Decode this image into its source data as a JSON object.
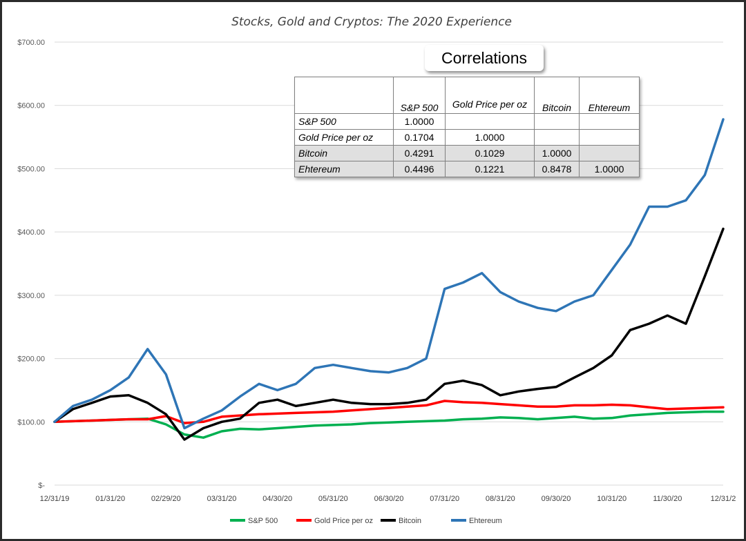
{
  "chart_data": {
    "type": "line",
    "title": "Stocks, Gold and Cryptos: The 2020 Experience",
    "xlabel": "",
    "ylabel": "",
    "x_tick_labels": [
      "12/31/19",
      "01/31/20",
      "02/29/20",
      "03/31/20",
      "04/30/20",
      "05/31/20",
      "06/30/20",
      "07/31/20",
      "08/31/20",
      "09/30/20",
      "10/31/20",
      "11/30/20",
      "12/31/2"
    ],
    "y_tick_labels": [
      "$-",
      "$100.00",
      "$200.00",
      "$300.00",
      "$400.00",
      "$500.00",
      "$600.00",
      "$700.00"
    ],
    "ylim": [
      0,
      700
    ],
    "grid": true,
    "legend_position": "bottom",
    "x": [
      0,
      0.33,
      0.67,
      1,
      1.33,
      1.67,
      2,
      2.33,
      2.67,
      3,
      3.33,
      3.67,
      4,
      4.33,
      4.67,
      5,
      5.33,
      5.67,
      6,
      6.33,
      6.67,
      7,
      7.33,
      7.67,
      8,
      8.33,
      8.67,
      9,
      9.33,
      9.67,
      10,
      10.33,
      10.67,
      11,
      11.33,
      11.67,
      12
    ],
    "series": [
      {
        "name": "S&P 500",
        "color": "#00b050",
        "values": [
          100,
          101,
          102,
          103,
          104,
          105,
          96,
          80,
          75,
          85,
          89,
          88,
          90,
          92,
          94,
          95,
          96,
          98,
          99,
          100,
          101,
          102,
          104,
          105,
          107,
          106,
          104,
          106,
          108,
          105,
          106,
          110,
          112,
          114,
          115,
          116,
          116
        ]
      },
      {
        "name": "Gold Price per oz",
        "color": "#ff0000",
        "values": [
          100,
          101,
          102,
          103,
          104,
          104,
          109,
          98,
          100,
          108,
          110,
          112,
          113,
          114,
          115,
          116,
          118,
          120,
          122,
          124,
          126,
          133,
          131,
          130,
          128,
          126,
          124,
          124,
          126,
          126,
          127,
          126,
          123,
          120,
          121,
          122,
          123
        ]
      },
      {
        "name": "Bitcoin",
        "color": "#000000",
        "values": [
          100,
          120,
          130,
          140,
          142,
          130,
          112,
          72,
          90,
          100,
          105,
          130,
          135,
          125,
          130,
          135,
          130,
          128,
          128,
          130,
          135,
          160,
          165,
          158,
          142,
          148,
          152,
          155,
          170,
          185,
          205,
          245,
          255,
          268,
          255,
          330,
          405
        ]
      },
      {
        "name": "Ehtereum",
        "color": "#2e75b6",
        "values": [
          100,
          125,
          135,
          150,
          170,
          215,
          175,
          90,
          105,
          118,
          140,
          160,
          150,
          160,
          185,
          190,
          185,
          180,
          178,
          185,
          200,
          310,
          320,
          335,
          305,
          290,
          280,
          275,
          290,
          300,
          340,
          380,
          440,
          440,
          450,
          490,
          578
        ]
      }
    ]
  },
  "correlations": {
    "title": "Correlations",
    "headers": [
      "",
      "S&P 500",
      "Gold Price per oz",
      "Bitcoin",
      "Ehtereum"
    ],
    "rows": [
      {
        "label": "S&P 500",
        "values": [
          "1.0000",
          "",
          "",
          ""
        ]
      },
      {
        "label": "Gold Price per oz",
        "values": [
          "0.1704",
          "1.0000",
          "",
          ""
        ]
      },
      {
        "label": "Bitcoin",
        "values": [
          "0.4291",
          "0.1029",
          "1.0000",
          ""
        ]
      },
      {
        "label": "Ehtereum",
        "values": [
          "0.4496",
          "0.1221",
          "0.8478",
          "1.0000"
        ]
      }
    ]
  }
}
